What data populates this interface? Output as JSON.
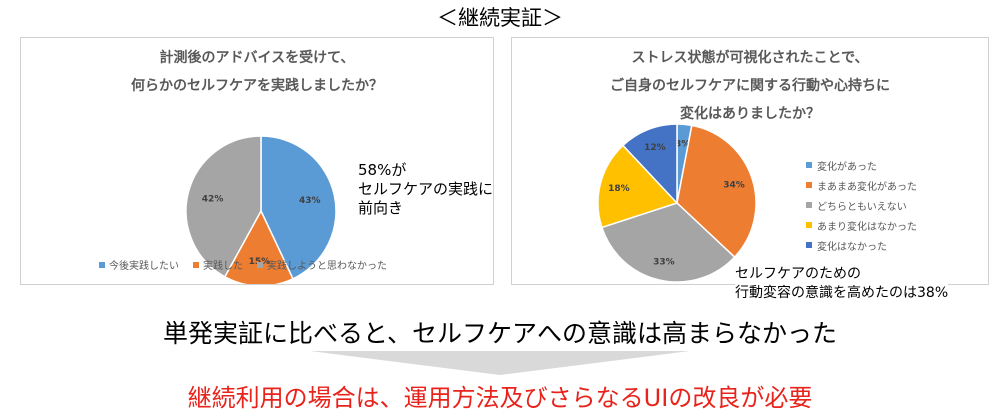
{
  "header": "＜継続実証＞",
  "chart_data": [
    {
      "type": "pie",
      "title_lines": [
        "計測後のアドバイスを受けて、",
        "何らかのセルフケアを実践しましたか？"
      ],
      "categories": [
        "今後実践したい",
        "実践した",
        "実践しようと思わなかった"
      ],
      "values": [
        43,
        15,
        42
      ],
      "labels": [
        "43%",
        "15%",
        "42%"
      ],
      "colors": [
        "#5b9bd5",
        "#ed7d31",
        "#a5a5a5"
      ],
      "legend_position": "bottom"
    },
    {
      "type": "pie",
      "title_lines": [
        "ストレス状態が可視化されたことで、",
        "ご自身のセルフケアに関する行動や心持ちに",
        "変化はありましたか？"
      ],
      "categories": [
        "変化があった",
        "まあまあ変化があった",
        "どちらともいえない",
        "あまり変化はなかった",
        "変化はなかった"
      ],
      "values": [
        3,
        34,
        33,
        18,
        12
      ],
      "labels": [
        "3%",
        "34%",
        "33%",
        "18%",
        "12%"
      ],
      "colors": [
        "#5b9bd5",
        "#ed7d31",
        "#a5a5a5",
        "#ffc000",
        "#4472c4"
      ],
      "legend_position": "right"
    }
  ],
  "note1": [
    "58%が",
    "セルフケアの実践に",
    "前向き"
  ],
  "note2": [
    "セルフケアのための",
    "行動変容の意識を高めたのは38%"
  ],
  "summary": "単発実証に比べると、セルフケアへの意識は高まらなかった",
  "conclusion": "継続利用の場合は、運用方法及びさらなるUIの改良が必要",
  "arrow_color": "#d9d9d9"
}
